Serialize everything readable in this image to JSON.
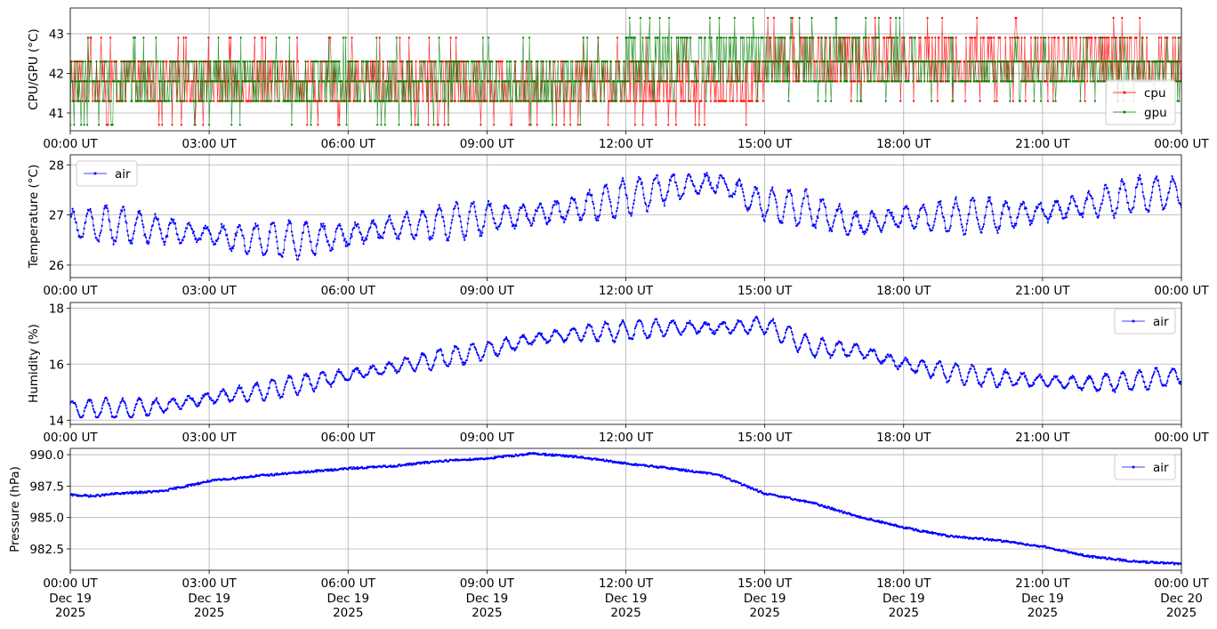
{
  "x_ticks": [
    "00:00 UT",
    "03:00 UT",
    "06:00 UT",
    "09:00 UT",
    "12:00 UT",
    "15:00 UT",
    "18:00 UT",
    "21:00 UT",
    "00:00 UT"
  ],
  "x_dates": [
    "Dec 19\n2025",
    "Dec 19\n2025",
    "Dec 19\n2025",
    "Dec 19\n2025",
    "Dec 19\n2025",
    "Dec 19\n2025",
    "Dec 19\n2025",
    "Dec 19\n2025",
    "Dec 20\n2025"
  ],
  "chart_data": [
    {
      "type": "line",
      "ylabel": "CPU/GPU (°C)",
      "ylim": [
        40.55,
        43.65
      ],
      "yticks": [
        41,
        42,
        43
      ],
      "xlim": [
        "2025-12-19 00:00",
        "2025-12-20 00:00"
      ],
      "grid": true,
      "legend": "bottom-right",
      "series": [
        {
          "name": "cpu",
          "color": "#ff0000",
          "markers": true,
          "levels": [
            40.7,
            41.3,
            41.8,
            42.3,
            42.9,
            43.4
          ],
          "typical_range_by_hour": [
            [
              41.3,
              42.3
            ],
            [
              41.3,
              42.3
            ],
            [
              41.3,
              42.3
            ],
            [
              41.3,
              42.3
            ],
            [
              41.3,
              42.3
            ],
            [
              41.8,
              42.9
            ],
            [
              41.8,
              42.9
            ],
            [
              41.8,
              42.9
            ]
          ]
        },
        {
          "name": "gpu",
          "color": "#008000",
          "markers": true,
          "levels": [
            40.7,
            41.3,
            41.8,
            42.3,
            42.9,
            43.4
          ],
          "typical_range_by_hour": [
            [
              41.3,
              42.3
            ],
            [
              41.3,
              42.3
            ],
            [
              41.3,
              42.3
            ],
            [
              41.3,
              42.3
            ],
            [
              41.8,
              42.9
            ],
            [
              41.8,
              42.9
            ],
            [
              41.8,
              42.3
            ],
            [
              41.8,
              42.3
            ]
          ]
        }
      ]
    },
    {
      "type": "line",
      "ylabel": "Temperature (°C)",
      "ylim": [
        25.75,
        28.2
      ],
      "yticks": [
        26,
        27,
        28
      ],
      "xlim": [
        "2025-12-19 00:00",
        "2025-12-20 00:00"
      ],
      "grid": true,
      "legend": "top-left",
      "series": [
        {
          "name": "air",
          "color": "#0000ff",
          "markers": true,
          "trend_hours": [
            0,
            1,
            2,
            3,
            4,
            5,
            6,
            7,
            8,
            9,
            10,
            11,
            12,
            13,
            14,
            15,
            16,
            17,
            18,
            19,
            20,
            21,
            22,
            23,
            24
          ],
          "trend_values": [
            26.8,
            26.8,
            26.7,
            26.6,
            26.5,
            26.5,
            26.6,
            26.75,
            26.85,
            26.95,
            27.0,
            27.15,
            27.35,
            27.55,
            27.65,
            27.2,
            27.1,
            26.8,
            26.95,
            26.95,
            27.0,
            27.05,
            27.2,
            27.4,
            27.45
          ],
          "oscillation_amplitude": 0.35,
          "min": 25.9,
          "max": 28.05
        }
      ]
    },
    {
      "type": "line",
      "ylabel": "Humidity (%)",
      "ylim": [
        13.85,
        18.2
      ],
      "yticks": [
        14,
        16,
        18
      ],
      "xlim": [
        "2025-12-19 00:00",
        "2025-12-20 00:00"
      ],
      "grid": true,
      "legend": "top-right",
      "series": [
        {
          "name": "air",
          "color": "#0000ff",
          "markers": true,
          "trend_hours": [
            0,
            1,
            2,
            3,
            4,
            5,
            6,
            7,
            8,
            9,
            10,
            11,
            12,
            13,
            14,
            15,
            16,
            17,
            18,
            19,
            20,
            21,
            22,
            23,
            24
          ],
          "trend_values": [
            14.4,
            14.4,
            14.5,
            14.8,
            15.0,
            15.3,
            15.6,
            15.9,
            16.2,
            16.5,
            16.9,
            17.1,
            17.2,
            17.3,
            17.3,
            17.4,
            16.6,
            16.5,
            16.0,
            15.7,
            15.5,
            15.4,
            15.3,
            15.4,
            15.6
          ],
          "oscillation_amplitude": 0.35,
          "min": 14.1,
          "max": 18.1
        }
      ]
    },
    {
      "type": "line",
      "ylabel": "Pressure (hPa)",
      "ylim": [
        980.8,
        990.5
      ],
      "yticks": [
        982.5,
        985.0,
        987.5,
        990.0
      ],
      "xlim": [
        "2025-12-19 00:00",
        "2025-12-20 00:00"
      ],
      "grid": true,
      "legend": "top-right",
      "series": [
        {
          "name": "air",
          "color": "#0000ff",
          "markers": true,
          "trend_hours": [
            0,
            0.5,
            1,
            2,
            3,
            4,
            5,
            6,
            7,
            8,
            9,
            10,
            11,
            12,
            13,
            14,
            15,
            16,
            17,
            18,
            19,
            20,
            21,
            22,
            23,
            24
          ],
          "trend_values": [
            986.8,
            986.7,
            986.9,
            987.1,
            987.9,
            988.3,
            988.6,
            988.9,
            989.1,
            989.5,
            989.7,
            990.1,
            989.8,
            989.3,
            988.9,
            988.4,
            986.9,
            986.2,
            985.1,
            984.2,
            983.5,
            983.2,
            982.7,
            981.9,
            981.5,
            981.3
          ],
          "noise": 0.08
        }
      ]
    }
  ]
}
